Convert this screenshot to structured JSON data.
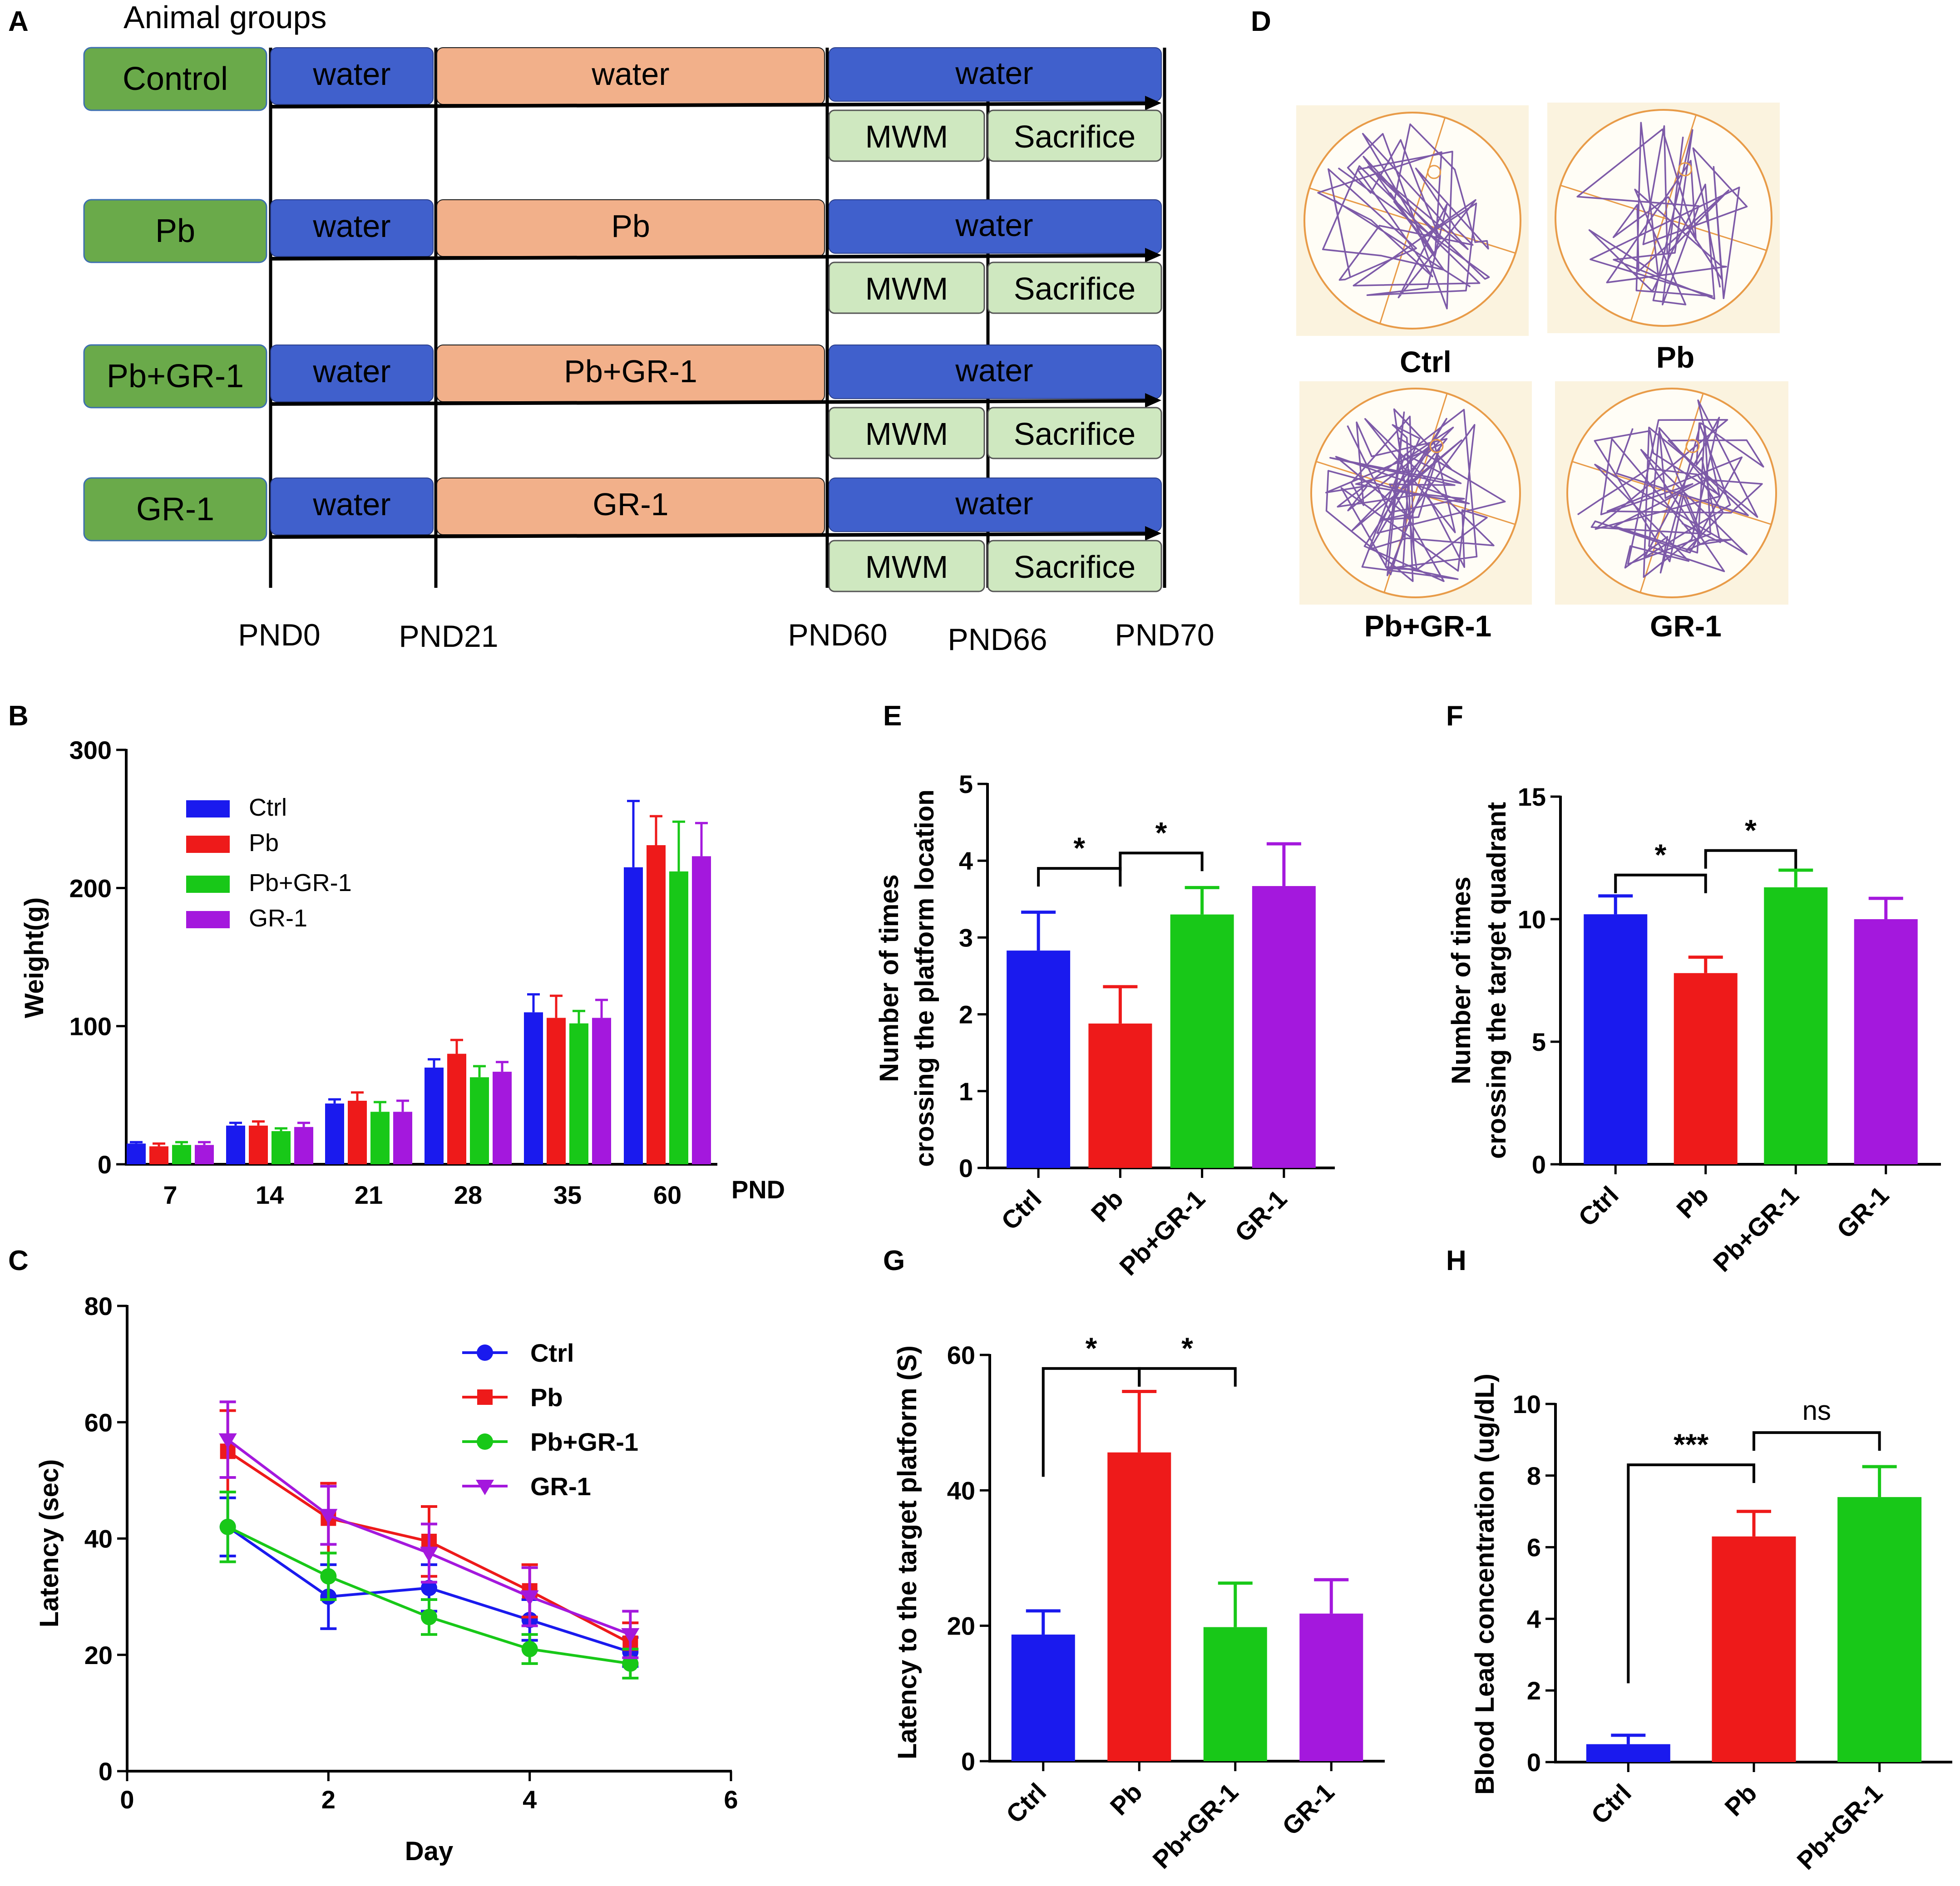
{
  "colors": {
    "ctrl": "#1a1aee",
    "pb": "#ee1a1a",
    "pbgr": "#18c818",
    "gr": "#a418dd",
    "group_box": "#6aaa4a",
    "water": "#4060cc",
    "treat": "#f2b08a",
    "stage": "#cfe8c0"
  },
  "panelA": {
    "letter": "A",
    "title": "Animal groups",
    "groups": [
      "Control",
      "Pb",
      "Pb+GR-1",
      "GR-1"
    ],
    "stage1": [
      "water",
      "water",
      "water",
      "water"
    ],
    "stage2": [
      "water",
      "Pb",
      "Pb+GR-1",
      "GR-1"
    ],
    "stage3": [
      "water",
      "water",
      "water",
      "water"
    ],
    "mwm": "MWM",
    "sacrifice": "Sacrifice",
    "timepoints": [
      "PND0",
      "PND21",
      "PND60",
      "PND66",
      "PND70"
    ]
  },
  "panelD": {
    "letter": "D",
    "labels": [
      "Ctrl",
      "Pb",
      "Pb+GR-1",
      "GR-1"
    ]
  },
  "chart_data": [
    {
      "id": "B",
      "letter": "B",
      "type": "bar",
      "ylabel": "Weight(g)",
      "xlabel": "PND",
      "ylim": [
        0,
        300
      ],
      "yticks": [
        0,
        100,
        200,
        300
      ],
      "categories": [
        "7",
        "14",
        "21",
        "28",
        "35",
        "60"
      ],
      "legend": "top-left",
      "series": [
        {
          "name": "Ctrl",
          "values": [
            15,
            28,
            44,
            70,
            110,
            215
          ],
          "err": [
            1,
            2,
            3,
            6,
            13,
            48
          ]
        },
        {
          "name": "Pb",
          "values": [
            13,
            28,
            46,
            80,
            106,
            231
          ],
          "err": [
            2,
            3,
            6,
            10,
            16,
            21
          ]
        },
        {
          "name": "Pb+GR-1",
          "values": [
            14,
            24,
            38,
            63,
            102,
            212
          ],
          "err": [
            2,
            2,
            7,
            8,
            9,
            36
          ]
        },
        {
          "name": "GR-1",
          "values": [
            14,
            27,
            38,
            67,
            106,
            223
          ],
          "err": [
            2,
            3,
            8,
            7,
            13,
            24
          ]
        }
      ]
    },
    {
      "id": "C",
      "letter": "C",
      "type": "line",
      "ylabel": "Latency (sec)",
      "xlabel": "Day",
      "xlim": [
        0,
        6
      ],
      "xticks": [
        0,
        2,
        4,
        6
      ],
      "ylim": [
        0,
        80
      ],
      "yticks": [
        0,
        20,
        40,
        60,
        80
      ],
      "legend": "top-right",
      "series": [
        {
          "name": "Ctrl",
          "x": [
            1,
            2,
            3,
            4,
            5
          ],
          "values": [
            42,
            30,
            31.5,
            26,
            20.5
          ],
          "err": [
            5,
            5.5,
            4,
            3.5,
            2.5
          ],
          "marker": "circle"
        },
        {
          "name": "Pb",
          "x": [
            1,
            2,
            3,
            4,
            5
          ],
          "values": [
            55,
            43.5,
            39.5,
            31,
            22
          ],
          "err": [
            7,
            6,
            6,
            4.5,
            3.5
          ],
          "marker": "square"
        },
        {
          "name": "Pb+GR-1",
          "x": [
            1,
            2,
            3,
            4,
            5
          ],
          "values": [
            42,
            33.5,
            26.5,
            21,
            18.5
          ],
          "err": [
            6,
            4,
            3,
            2.5,
            2.5
          ],
          "marker": "circle"
        },
        {
          "name": "GR-1",
          "x": [
            1,
            2,
            3,
            4,
            5
          ],
          "values": [
            57,
            44,
            37.5,
            30,
            23.5
          ],
          "err": [
            6.5,
            5,
            5,
            5,
            4
          ],
          "marker": "triangle"
        }
      ]
    },
    {
      "id": "E",
      "letter": "E",
      "type": "bar",
      "ylabel": [
        "Number of times",
        "crossing the platform location"
      ],
      "ylim": [
        0,
        5
      ],
      "yticks": [
        0,
        1,
        2,
        3,
        4,
        5
      ],
      "categories": [
        "Ctrl",
        "Pb",
        "Pb+GR-1",
        "GR-1"
      ],
      "values": [
        2.83,
        1.88,
        3.3,
        3.67
      ],
      "err": [
        0.5,
        0.48,
        0.35,
        0.55
      ],
      "annotations": [
        {
          "from": 0,
          "to": 1,
          "y": 3.9,
          "label": "*"
        },
        {
          "from": 1,
          "to": 2,
          "y": 4.1,
          "label": "*"
        }
      ]
    },
    {
      "id": "F",
      "letter": "F",
      "type": "bar",
      "ylabel": [
        "Number of times",
        "crossing the target quadrant"
      ],
      "ylim": [
        0,
        15
      ],
      "yticks": [
        0,
        5,
        10,
        15
      ],
      "categories": [
        "Ctrl",
        "Pb",
        "Pb+GR-1",
        "GR-1"
      ],
      "values": [
        10.2,
        7.8,
        11.3,
        10.0
      ],
      "err": [
        0.75,
        0.65,
        0.7,
        0.85
      ],
      "annotations": [
        {
          "from": 0,
          "to": 1,
          "y": 11.8,
          "label": "*"
        },
        {
          "from": 1,
          "to": 2,
          "y": 12.8,
          "label": "*"
        }
      ]
    },
    {
      "id": "G",
      "letter": "G",
      "type": "bar",
      "ylabel": [
        "Latency to the target platform (S)"
      ],
      "ylim": [
        0,
        60
      ],
      "yticks": [
        0,
        20,
        40,
        60
      ],
      "categories": [
        "Ctrl",
        "Pb",
        "Pb+GR-1",
        "GR-1"
      ],
      "values": [
        18.7,
        45.6,
        19.8,
        21.8
      ],
      "err": [
        3.5,
        9,
        6.5,
        5
      ],
      "annotations": [
        {
          "from": 0,
          "to": 1,
          "y": 58,
          "label": "*",
          "leftDrop": 42
        },
        {
          "from": 1,
          "to": 2,
          "y": 58,
          "label": "*"
        }
      ]
    },
    {
      "id": "H",
      "letter": "H",
      "type": "bar",
      "ylabel": [
        "Blood Lead concentration (ug/dL)"
      ],
      "ylim": [
        0,
        10
      ],
      "yticks": [
        0,
        2,
        4,
        6,
        8,
        10
      ],
      "categories": [
        "Ctrl",
        "Pb",
        "Pb+GR-1"
      ],
      "values": [
        0.5,
        6.3,
        7.4
      ],
      "err": [
        0.25,
        0.7,
        0.85
      ],
      "annotations": [
        {
          "from": 0,
          "to": 1,
          "y": 8.3,
          "label": "***",
          "leftDrop": 2.2
        },
        {
          "from": 1,
          "to": 2,
          "y": 9.2,
          "label": "ns"
        }
      ]
    }
  ]
}
